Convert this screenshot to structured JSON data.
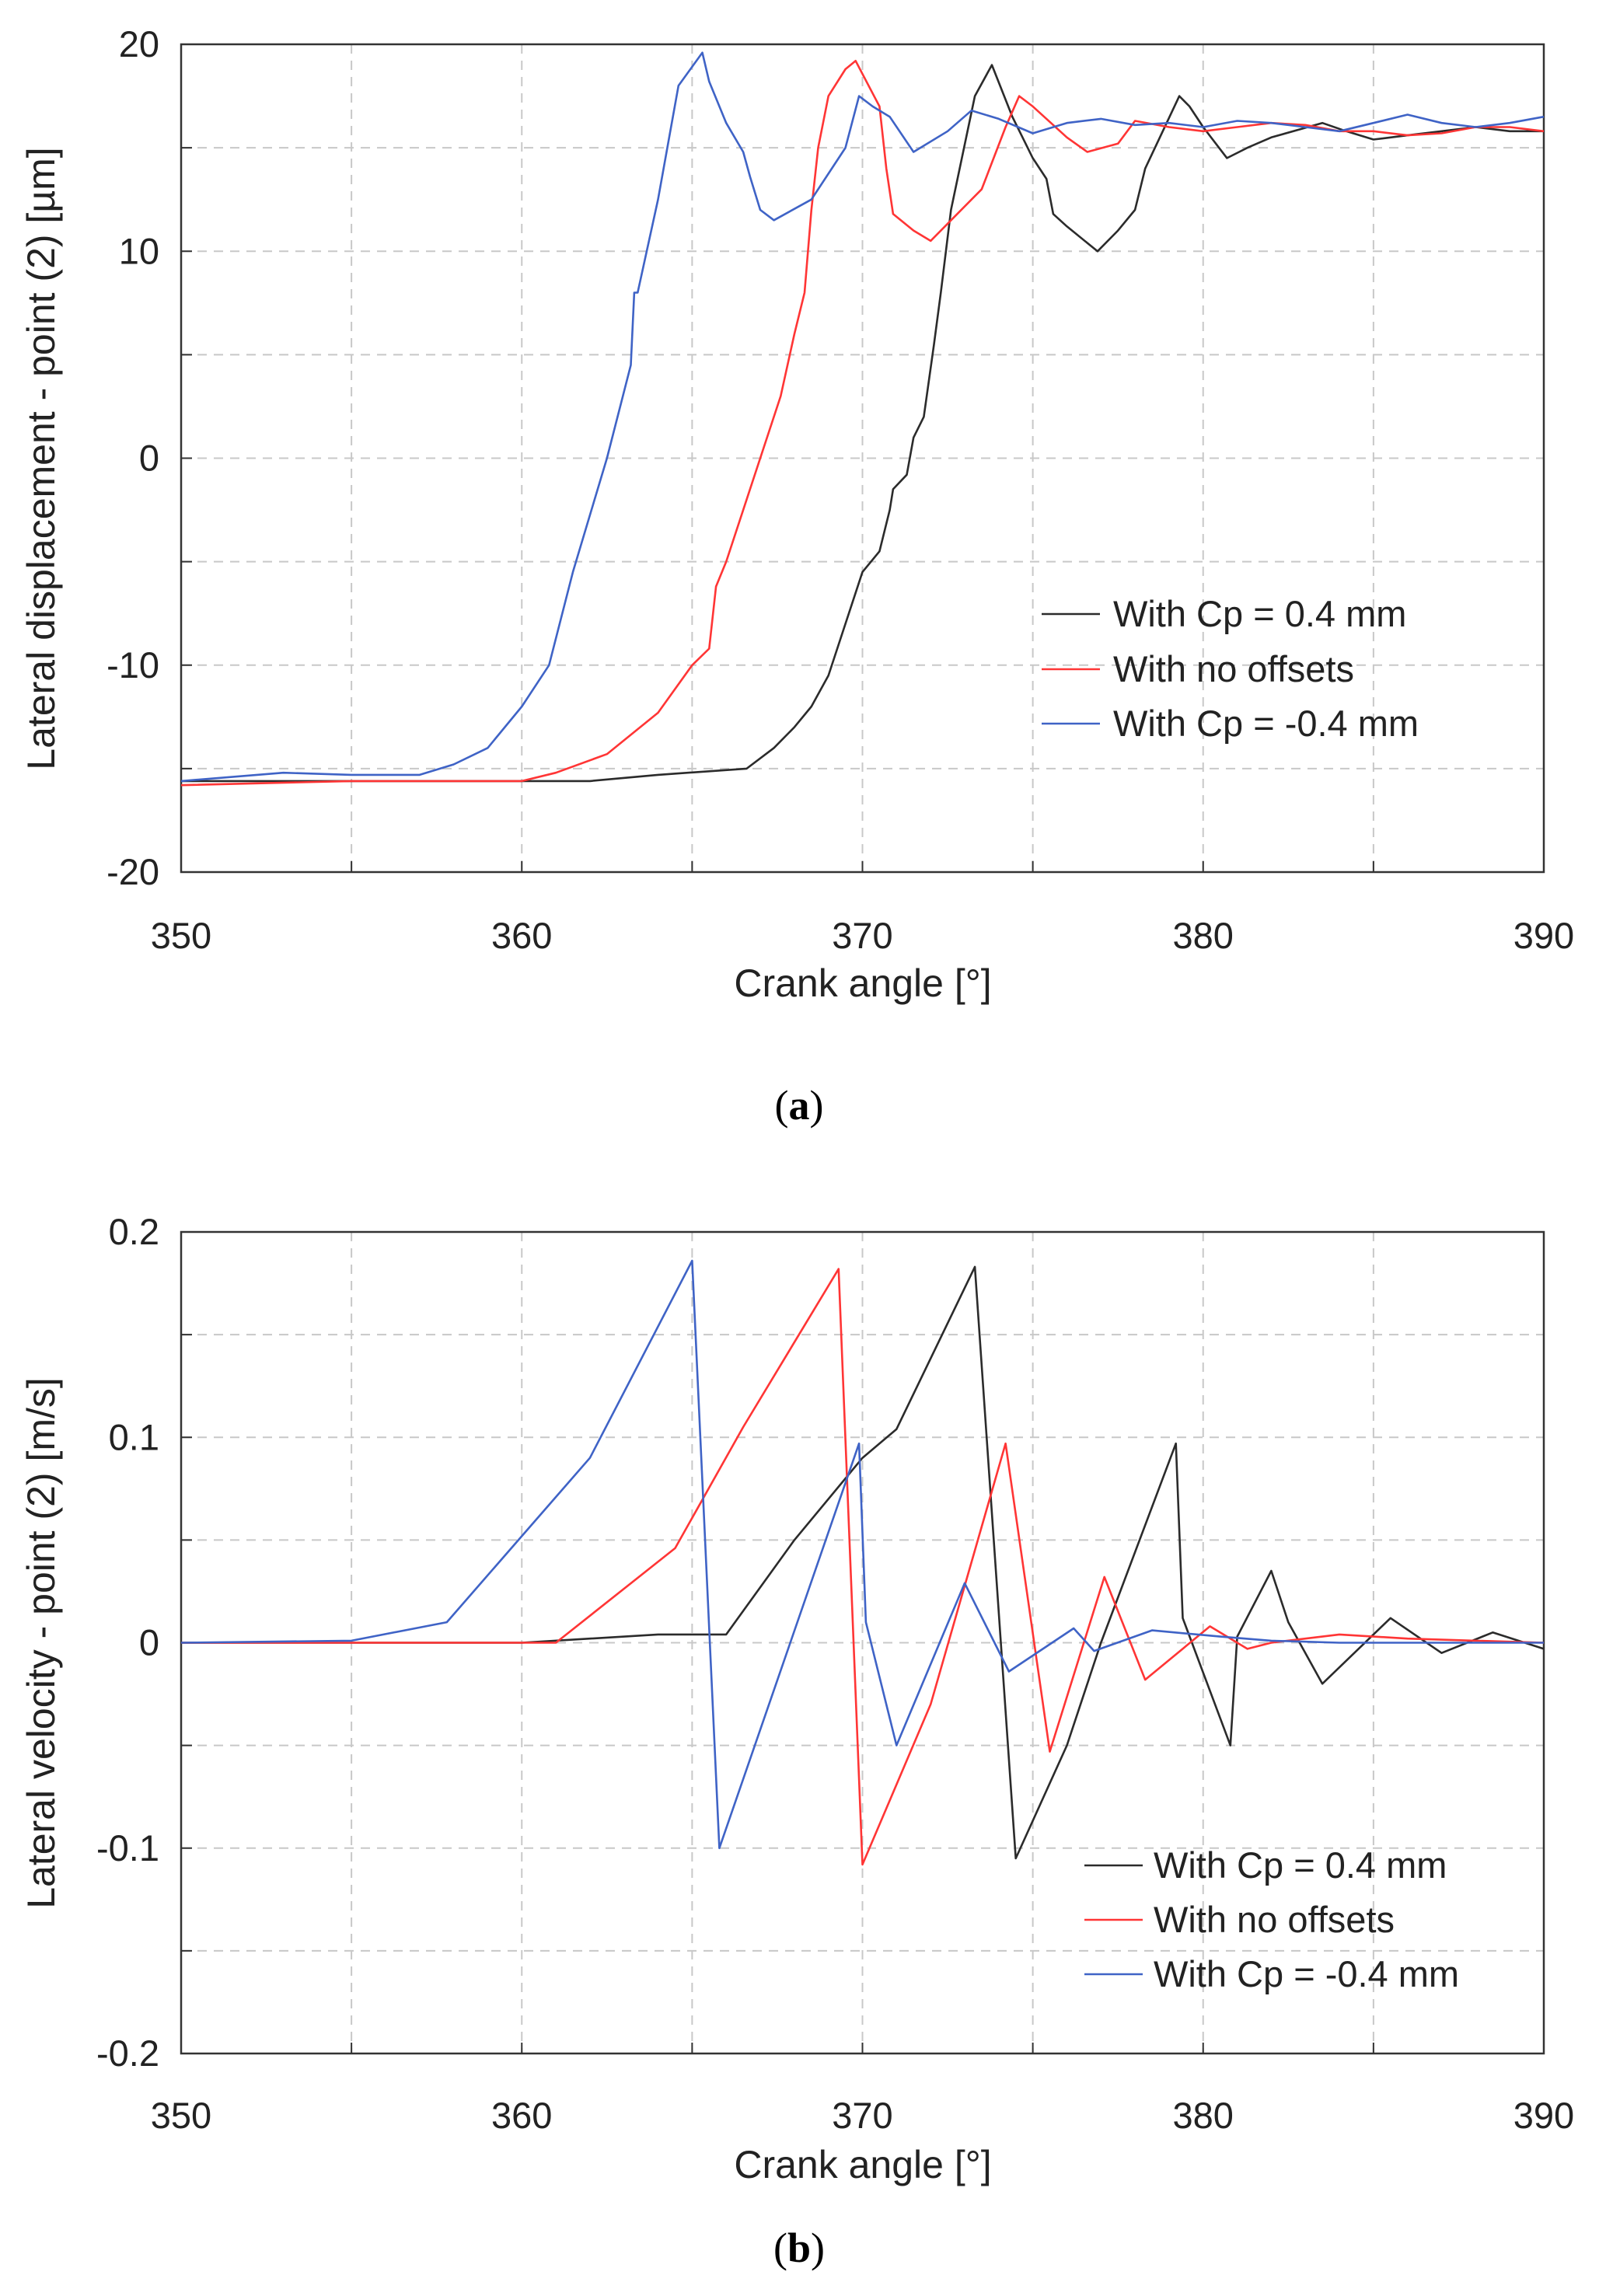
{
  "chart_data": [
    {
      "type": "line",
      "caption": "a",
      "xlabel": "Crank angle [°]",
      "ylabel": "Lateral displacement - point (2) [µm]",
      "xlim": [
        350,
        390
      ],
      "ylim": [
        -20,
        20
      ],
      "xticks": [
        350,
        360,
        370,
        380,
        390
      ],
      "yticks": [
        -20,
        -10,
        0,
        10,
        20
      ],
      "grid": true,
      "legend_position": "lower-right",
      "series": [
        {
          "name": "With Cp = 0.4 mm",
          "color": "#2b2b2b",
          "x": [
            350,
            355,
            360,
            362,
            364,
            366.6,
            367.4,
            368,
            368.5,
            369,
            369.5,
            370,
            370.5,
            370.8,
            370.9,
            371.3,
            371.5,
            371.8,
            372.1,
            372.3,
            372.6,
            373.3,
            373.8,
            374.4,
            375,
            375.4,
            375.6,
            376,
            376.9,
            377.5,
            378,
            378.3,
            379.3,
            379.6,
            380,
            380.7,
            381.3,
            382,
            383.5,
            384.2,
            385,
            386,
            387,
            388,
            389,
            390
          ],
          "y": [
            -15.6,
            -15.6,
            -15.6,
            -15.6,
            -15.3,
            -15,
            -14,
            -13,
            -12,
            -10.5,
            -8,
            -5.5,
            -4.5,
            -2.5,
            -1.5,
            -0.8,
            1,
            2,
            5.5,
            8,
            12,
            17.5,
            19,
            16.5,
            14.5,
            13.5,
            11.8,
            11.2,
            10,
            11,
            12,
            14,
            17.5,
            17,
            16,
            14.5,
            15,
            15.5,
            16.2,
            15.8,
            15.4,
            15.6,
            15.8,
            16,
            15.8,
            15.8
          ]
        },
        {
          "name": "With no offsets",
          "color": "#ff3535",
          "x": [
            350,
            355,
            360,
            361,
            362.5,
            364,
            365,
            365.5,
            365.7,
            366,
            367,
            367.6,
            368,
            368.3,
            368.5,
            368.7,
            369,
            369.5,
            369.8,
            370.5,
            370.7,
            370.9,
            371.5,
            372,
            373.5,
            374.2,
            374.6,
            375,
            376,
            376.6,
            377.5,
            378,
            379,
            380,
            381,
            382,
            383,
            384,
            385,
            386,
            387,
            388,
            389,
            390
          ],
          "y": [
            -15.8,
            -15.6,
            -15.6,
            -15.2,
            -14.3,
            -12.3,
            -10,
            -9.2,
            -6.2,
            -5,
            0,
            3,
            6,
            8,
            12,
            15,
            17.5,
            18.8,
            19.2,
            17,
            14,
            11.8,
            11,
            10.5,
            13,
            16,
            17.5,
            17,
            15.5,
            14.8,
            15.2,
            16.3,
            16,
            15.8,
            16,
            16.2,
            16.1,
            15.8,
            15.8,
            15.6,
            15.7,
            16,
            16,
            15.8
          ]
        },
        {
          "name": "With Cp = -0.4 mm",
          "color": "#3f63c6",
          "x": [
            350,
            353,
            355,
            357,
            358,
            359,
            360,
            360.8,
            361.5,
            362.5,
            363.2,
            363.3,
            363.4,
            364,
            364.6,
            365.3,
            365.5,
            366,
            366.5,
            366.7,
            367,
            367.4,
            368.5,
            369.5,
            369.9,
            370.3,
            370.8,
            371.5,
            372.5,
            373.2,
            374,
            375,
            376,
            377,
            378,
            379,
            380,
            381,
            382,
            383,
            384,
            385,
            386,
            387,
            388,
            389,
            390
          ],
          "y": [
            -15.6,
            -15.2,
            -15.3,
            -15.3,
            -14.8,
            -14,
            -12,
            -10,
            -5.5,
            0,
            4.5,
            8,
            8,
            12.5,
            18,
            19.6,
            18.2,
            16.2,
            14.8,
            13.6,
            12,
            11.5,
            12.5,
            15,
            17.5,
            17,
            16.5,
            14.8,
            15.8,
            16.8,
            16.4,
            15.7,
            16.2,
            16.4,
            16.1,
            16.2,
            16,
            16.3,
            16.2,
            16,
            15.8,
            16.2,
            16.6,
            16.2,
            16,
            16.2,
            16.5
          ]
        }
      ]
    },
    {
      "type": "line",
      "caption": "b",
      "xlabel": "Crank angle [°]",
      "ylabel": "Lateral velocity - point (2) [m/s]",
      "xlim": [
        350,
        390
      ],
      "ylim": [
        -0.2,
        0.2
      ],
      "xticks": [
        350,
        360,
        370,
        380,
        390
      ],
      "yticks": [
        -0.2,
        -0.1,
        0,
        0.1,
        0.2
      ],
      "grid": true,
      "legend_position": "lower-right",
      "series": [
        {
          "name": "With Cp = 0.4 mm",
          "color": "#2b2b2b",
          "x": [
            350,
            355,
            360,
            362,
            364,
            366,
            368,
            370,
            371,
            373.3,
            374.5,
            376,
            377,
            379.2,
            379.4,
            380.8,
            381,
            382,
            382.5,
            383.5,
            385.5,
            387,
            388.5,
            390
          ],
          "y": [
            0,
            0,
            0,
            0.002,
            0.004,
            0.004,
            0.05,
            0.09,
            0.104,
            0.183,
            -0.105,
            -0.05,
            0,
            0.097,
            0.012,
            -0.05,
            0.003,
            0.035,
            0.01,
            -0.02,
            0.012,
            -0.005,
            0.005,
            -0.003
          ]
        },
        {
          "name": "With no offsets",
          "color": "#ff3535",
          "x": [
            350,
            355,
            360,
            361,
            364.5,
            366.5,
            369.3,
            370,
            372,
            374.2,
            375.5,
            377.1,
            378.3,
            380.2,
            381.3,
            382,
            384,
            386,
            388,
            390
          ],
          "y": [
            0,
            0,
            0,
            0,
            0.046,
            0.105,
            0.182,
            -0.108,
            -0.03,
            0.097,
            -0.053,
            0.032,
            -0.018,
            0.008,
            -0.003,
            0,
            0.004,
            0.002,
            0.001,
            0
          ]
        },
        {
          "name": "With Cp = -0.4 mm",
          "color": "#3f63c6",
          "x": [
            350,
            355,
            357.8,
            362,
            365,
            365.8,
            369.9,
            370.1,
            371,
            373,
            374.3,
            376.2,
            376.8,
            378.5,
            380.5,
            382,
            384,
            386,
            388,
            390
          ],
          "y": [
            0,
            0.001,
            0.01,
            0.09,
            0.186,
            -0.1,
            0.097,
            0.01,
            -0.05,
            0.029,
            -0.014,
            0.007,
            -0.004,
            0.006,
            0.003,
            0.001,
            0,
            0,
            0,
            0
          ]
        }
      ]
    }
  ]
}
